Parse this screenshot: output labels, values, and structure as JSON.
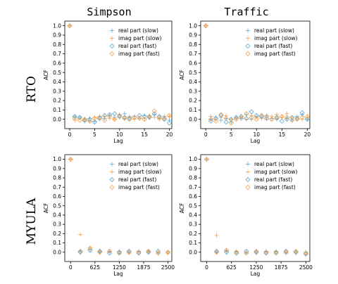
{
  "colors": {
    "slow_real": "#5aa9d6",
    "slow_imag": "#f5a04a",
    "fast_real": "#5aa9d6",
    "fast_imag": "#f5a04a"
  },
  "column_titles": [
    "Simpson",
    "Traffic"
  ],
  "row_labels": [
    "RTO",
    "MYULA"
  ],
  "chart_data": [
    {
      "type": "scatter",
      "xlabel": "Lag",
      "ylabel": "ACF",
      "xlim": [
        -1,
        20.5
      ],
      "ylim": [
        -0.1,
        1.05
      ],
      "xticks": [
        0,
        5,
        10,
        15,
        20
      ],
      "xtick_labels": [
        "0",
        "5",
        "10",
        "15",
        "20"
      ],
      "yticks": [
        0.0,
        0.1,
        0.2,
        0.3,
        0.4,
        0.5,
        0.6,
        0.7,
        0.8,
        0.9,
        1.0
      ],
      "ytick_labels": [
        "0.0",
        "0.1",
        "0.2",
        "0.3",
        "0.4",
        "0.5",
        "0.6",
        "0.7",
        "0.8",
        "0.9",
        "1.0"
      ],
      "legend_position": "top-right",
      "series": [
        {
          "name": "real part (slow)",
          "marker": "plus",
          "color_key": "slow_real",
          "x": [
            0,
            1,
            2,
            3,
            4,
            5,
            6,
            7,
            8,
            9,
            10,
            11,
            12,
            13,
            14,
            15,
            16,
            17,
            18,
            19,
            20
          ],
          "y": [
            1.0,
            0.03,
            0.02,
            -0.02,
            0.01,
            -0.02,
            0.03,
            0.01,
            0.04,
            0.02,
            0.05,
            0.06,
            0.02,
            0.03,
            0.01,
            0.04,
            0.02,
            0.05,
            0.01,
            0.03,
            -0.01
          ]
        },
        {
          "name": "imag part (slow)",
          "marker": "plus",
          "color_key": "slow_imag",
          "x": [
            0,
            1,
            2,
            3,
            4,
            5,
            6,
            7,
            8,
            9,
            10,
            11,
            12,
            13,
            14,
            15,
            16,
            17,
            18,
            19,
            20
          ],
          "y": [
            1.0,
            -0.01,
            0.01,
            0.0,
            -0.02,
            0.02,
            0.0,
            0.03,
            0.01,
            0.0,
            0.02,
            0.01,
            0.03,
            0.0,
            0.02,
            0.01,
            0.04,
            0.02,
            0.0,
            0.01,
            0.03
          ]
        },
        {
          "name": "real part (fast)",
          "marker": "diamond",
          "color_key": "fast_real",
          "x": [
            0,
            1,
            2,
            3,
            4,
            5,
            6,
            7,
            8,
            9,
            10,
            11,
            12,
            13,
            14,
            15,
            16,
            17,
            18,
            19,
            20
          ],
          "y": [
            1.0,
            0.03,
            0.02,
            -0.01,
            0.0,
            -0.03,
            0.01,
            0.04,
            0.05,
            0.06,
            0.03,
            0.02,
            0.01,
            0.02,
            0.04,
            0.03,
            0.02,
            0.06,
            0.03,
            0.0,
            -0.04
          ]
        },
        {
          "name": "imag part (fast)",
          "marker": "diamond",
          "color_key": "fast_imag",
          "x": [
            0,
            1,
            2,
            3,
            4,
            5,
            6,
            7,
            8,
            9,
            10,
            11,
            12,
            13,
            14,
            15,
            16,
            17,
            18,
            19,
            20
          ],
          "y": [
            1.0,
            0.01,
            -0.01,
            0.0,
            -0.02,
            0.01,
            0.02,
            -0.01,
            0.03,
            0.0,
            0.04,
            0.01,
            0.0,
            0.02,
            0.01,
            0.0,
            0.03,
            0.09,
            0.02,
            0.01,
            0.04
          ]
        }
      ]
    },
    {
      "type": "scatter",
      "xlabel": "Lag",
      "ylabel": "ACF",
      "xlim": [
        -1,
        20.5
      ],
      "ylim": [
        -0.1,
        1.05
      ],
      "xticks": [
        0,
        5,
        10,
        15,
        20
      ],
      "xtick_labels": [
        "0",
        "5",
        "10",
        "15",
        "20"
      ],
      "yticks": [
        0.0,
        0.1,
        0.2,
        0.3,
        0.4,
        0.5,
        0.6,
        0.7,
        0.8,
        0.9,
        1.0
      ],
      "ytick_labels": [
        "0.0",
        "0.1",
        "0.2",
        "0.3",
        "0.4",
        "0.5",
        "0.6",
        "0.7",
        "0.8",
        "0.9",
        "1.0"
      ],
      "legend_position": "top-right",
      "series": [
        {
          "name": "real part (slow)",
          "marker": "plus",
          "color_key": "slow_real",
          "x": [
            0,
            1,
            2,
            3,
            4,
            5,
            6,
            7,
            8,
            9,
            10,
            11,
            12,
            13,
            14,
            15,
            16,
            17,
            18,
            19,
            20
          ],
          "y": [
            1.0,
            0.0,
            0.02,
            -0.01,
            0.01,
            -0.03,
            0.02,
            0.01,
            0.05,
            0.0,
            0.03,
            0.02,
            0.04,
            0.01,
            0.0,
            0.02,
            0.01,
            -0.01,
            0.03,
            0.05,
            0.0
          ]
        },
        {
          "name": "imag part (slow)",
          "marker": "plus",
          "color_key": "slow_imag",
          "x": [
            0,
            1,
            2,
            3,
            4,
            5,
            6,
            7,
            8,
            9,
            10,
            11,
            12,
            13,
            14,
            15,
            16,
            17,
            18,
            19,
            20
          ],
          "y": [
            1.0,
            0.03,
            0.0,
            0.02,
            0.04,
            0.0,
            0.01,
            0.03,
            0.0,
            0.04,
            0.02,
            0.01,
            0.0,
            0.03,
            0.05,
            0.02,
            0.06,
            0.02,
            0.01,
            0.0,
            0.02
          ]
        },
        {
          "name": "real part (fast)",
          "marker": "diamond",
          "color_key": "fast_real",
          "x": [
            0,
            1,
            2,
            3,
            4,
            5,
            6,
            7,
            8,
            9,
            10,
            11,
            12,
            13,
            14,
            15,
            16,
            17,
            18,
            19,
            20
          ],
          "y": [
            1.0,
            -0.02,
            0.01,
            0.04,
            -0.03,
            0.0,
            0.02,
            0.03,
            0.01,
            0.08,
            0.04,
            0.03,
            0.01,
            0.0,
            0.02,
            -0.02,
            0.0,
            0.02,
            0.01,
            0.07,
            0.0
          ]
        },
        {
          "name": "imag part (fast)",
          "marker": "diamond",
          "color_key": "fast_imag",
          "x": [
            0,
            1,
            2,
            3,
            4,
            5,
            6,
            7,
            8,
            9,
            10,
            11,
            12,
            13,
            14,
            15,
            16,
            17,
            18,
            19,
            20
          ],
          "y": [
            1.0,
            0.0,
            -0.02,
            0.05,
            0.01,
            -0.04,
            0.0,
            0.01,
            0.06,
            0.02,
            0.0,
            0.04,
            0.03,
            0.0,
            0.01,
            0.03,
            0.02,
            -0.01,
            0.0,
            0.02,
            0.03
          ]
        }
      ]
    },
    {
      "type": "scatter",
      "xlabel": "Lag",
      "ylabel": "ACF",
      "xlim": [
        -150,
        2600
      ],
      "ylim": [
        -0.1,
        1.05
      ],
      "xticks": [
        0,
        625,
        1250,
        1875,
        2500
      ],
      "xtick_labels": [
        "0",
        "625",
        "1250",
        "1875",
        "2500"
      ],
      "yticks": [
        0.0,
        0.1,
        0.2,
        0.3,
        0.4,
        0.5,
        0.6,
        0.7,
        0.8,
        0.9,
        1.0
      ],
      "ytick_labels": [
        "0.0",
        "0.1",
        "0.2",
        "0.3",
        "0.4",
        "0.5",
        "0.6",
        "0.7",
        "0.8",
        "0.9",
        "1.0"
      ],
      "legend_position": "top-right",
      "series": [
        {
          "name": "real part (slow)",
          "marker": "plus",
          "color_key": "slow_real",
          "x": [
            0,
            250,
            500,
            750,
            1000,
            1250,
            1500,
            1750,
            2000,
            2250,
            2500
          ],
          "y": [
            1.0,
            0.01,
            0.03,
            0.0,
            0.01,
            -0.01,
            0.0,
            0.01,
            0.0,
            -0.01,
            0.0
          ]
        },
        {
          "name": "imag part (slow)",
          "marker": "plus",
          "color_key": "slow_imag",
          "x": [
            0,
            250,
            500,
            750,
            1000,
            1250,
            1500,
            1750,
            2000,
            2250,
            2500
          ],
          "y": [
            1.0,
            0.19,
            0.05,
            0.01,
            0.0,
            0.01,
            -0.01,
            0.0,
            0.01,
            0.0,
            -0.01
          ]
        },
        {
          "name": "real part (fast)",
          "marker": "diamond",
          "color_key": "fast_real",
          "x": [
            0,
            250,
            500,
            750,
            1000,
            1250,
            1500,
            1750,
            2000,
            2250,
            2500
          ],
          "y": [
            1.0,
            0.0,
            0.02,
            0.01,
            -0.01,
            0.0,
            0.01,
            -0.01,
            0.0,
            0.01,
            0.0
          ]
        },
        {
          "name": "imag part (fast)",
          "marker": "diamond",
          "color_key": "fast_imag",
          "x": [
            0,
            250,
            500,
            750,
            1000,
            1250,
            1500,
            1750,
            2000,
            2250,
            2500
          ],
          "y": [
            1.0,
            0.01,
            0.04,
            0.0,
            0.01,
            -0.01,
            0.0,
            0.0,
            0.01,
            -0.01,
            0.0
          ]
        }
      ]
    },
    {
      "type": "scatter",
      "xlabel": "Lag",
      "ylabel": "ACF",
      "xlim": [
        -150,
        2600
      ],
      "ylim": [
        -0.1,
        1.05
      ],
      "xticks": [
        0,
        625,
        1250,
        1875,
        2500
      ],
      "xtick_labels": [
        "0",
        "625",
        "1250",
        "1875",
        "2500"
      ],
      "yticks": [
        0.0,
        0.1,
        0.2,
        0.3,
        0.4,
        0.5,
        0.6,
        0.7,
        0.8,
        0.9,
        1.0
      ],
      "ytick_labels": [
        "0.0",
        "0.1",
        "0.2",
        "0.3",
        "0.4",
        "0.5",
        "0.6",
        "0.7",
        "0.8",
        "0.9",
        "1.0"
      ],
      "legend_position": "top-right",
      "series": [
        {
          "name": "real part (slow)",
          "marker": "plus",
          "color_key": "slow_real",
          "x": [
            0,
            250,
            500,
            750,
            1000,
            1250,
            1500,
            1750,
            2000,
            2250,
            2500
          ],
          "y": [
            1.0,
            0.0,
            0.01,
            0.0,
            -0.01,
            0.0,
            0.01,
            0.0,
            -0.01,
            0.0,
            0.0
          ]
        },
        {
          "name": "imag part (slow)",
          "marker": "plus",
          "color_key": "slow_imag",
          "x": [
            0,
            250,
            500,
            750,
            1000,
            1250,
            1500,
            1750,
            2000,
            2250,
            2500
          ],
          "y": [
            1.0,
            0.18,
            0.02,
            0.01,
            0.0,
            -0.01,
            0.0,
            0.01,
            0.0,
            -0.01,
            -0.02
          ]
        },
        {
          "name": "real part (fast)",
          "marker": "diamond",
          "color_key": "fast_real",
          "x": [
            0,
            250,
            500,
            750,
            1000,
            1250,
            1500,
            1750,
            2000,
            2250,
            2500
          ],
          "y": [
            1.0,
            0.01,
            0.0,
            -0.01,
            0.01,
            0.0,
            -0.01,
            0.0,
            0.01,
            0.0,
            -0.02
          ]
        },
        {
          "name": "imag part (fast)",
          "marker": "diamond",
          "color_key": "fast_imag",
          "x": [
            0,
            250,
            500,
            750,
            1000,
            1250,
            1500,
            1750,
            2000,
            2250,
            2500
          ],
          "y": [
            1.0,
            0.0,
            0.02,
            0.0,
            -0.01,
            0.01,
            0.0,
            -0.01,
            0.0,
            0.01,
            -0.01
          ]
        }
      ]
    }
  ]
}
